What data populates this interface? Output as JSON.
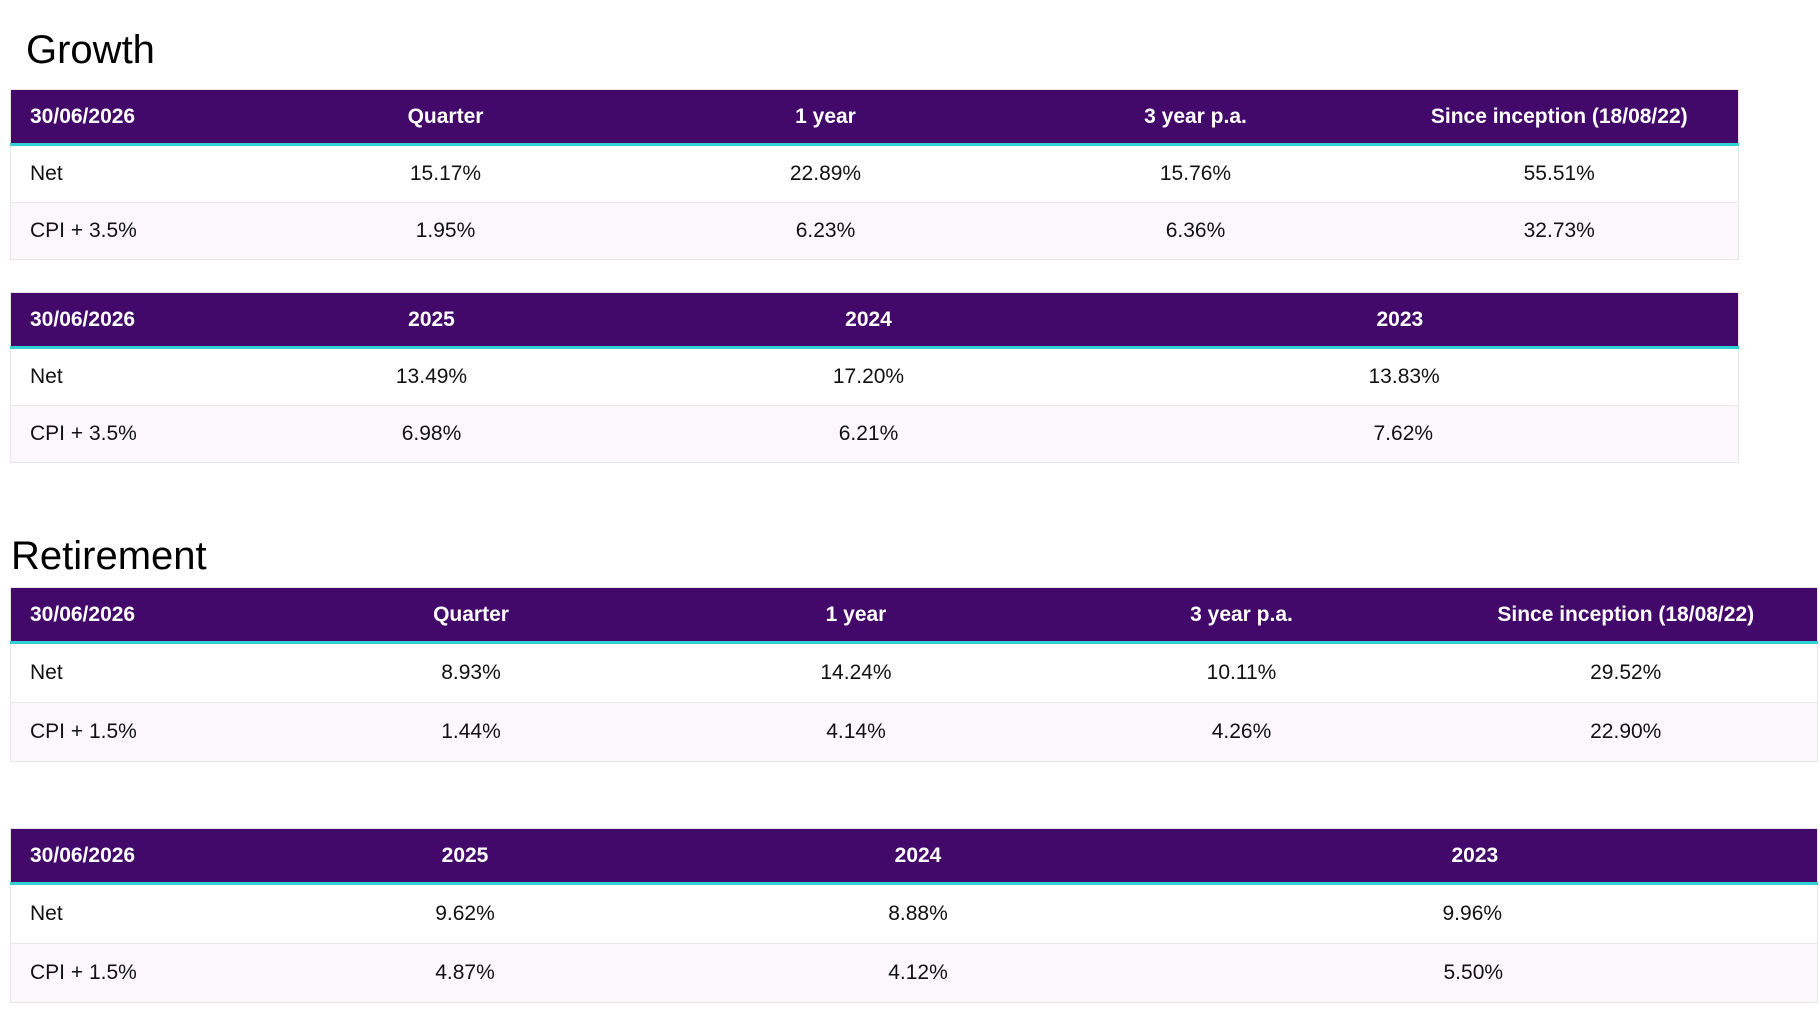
{
  "growth": {
    "title": "Growth",
    "period_table": {
      "headers": [
        "30/06/2026",
        "Quarter",
        "1 year",
        "3 year p.a.",
        "Since inception (18/08/22)"
      ],
      "rows": [
        [
          "Net",
          "15.17%",
          "22.89%",
          "15.76%",
          "55.51%"
        ],
        [
          "CPI + 3.5%",
          "1.95%",
          "6.23%",
          "6.36%",
          "32.73%"
        ]
      ]
    },
    "annual_table": {
      "headers": [
        "30/06/2026",
        "2025",
        "2024",
        "2023"
      ],
      "rows": [
        [
          "Net",
          "13.49%",
          "17.20%",
          "13.83%"
        ],
        [
          "CPI + 3.5%",
          "6.98%",
          "6.21%",
          "7.62%"
        ]
      ]
    }
  },
  "retirement": {
    "title": "Retirement",
    "period_table": {
      "headers": [
        "30/06/2026",
        "Quarter",
        "1 year",
        "3 year p.a.",
        "Since inception (18/08/22)"
      ],
      "rows": [
        [
          "Net",
          "8.93%",
          "14.24%",
          "10.11%",
          "29.52%"
        ],
        [
          "CPI + 1.5%",
          "1.44%",
          "4.14%",
          "4.26%",
          "22.90%"
        ]
      ]
    },
    "annual_table": {
      "headers": [
        "30/06/2026",
        "2025",
        "2024",
        "2023"
      ],
      "rows": [
        [
          "Net",
          "9.62%",
          "8.88%",
          "9.96%"
        ],
        [
          "CPI + 1.5%",
          "4.87%",
          "4.12%",
          "5.50%"
        ]
      ]
    }
  },
  "colors": {
    "header_bg": "#43096a",
    "header_text": "#ffffff",
    "header_underline": "#2fd0d6",
    "alt_row_bg": "#fcf7fb"
  }
}
